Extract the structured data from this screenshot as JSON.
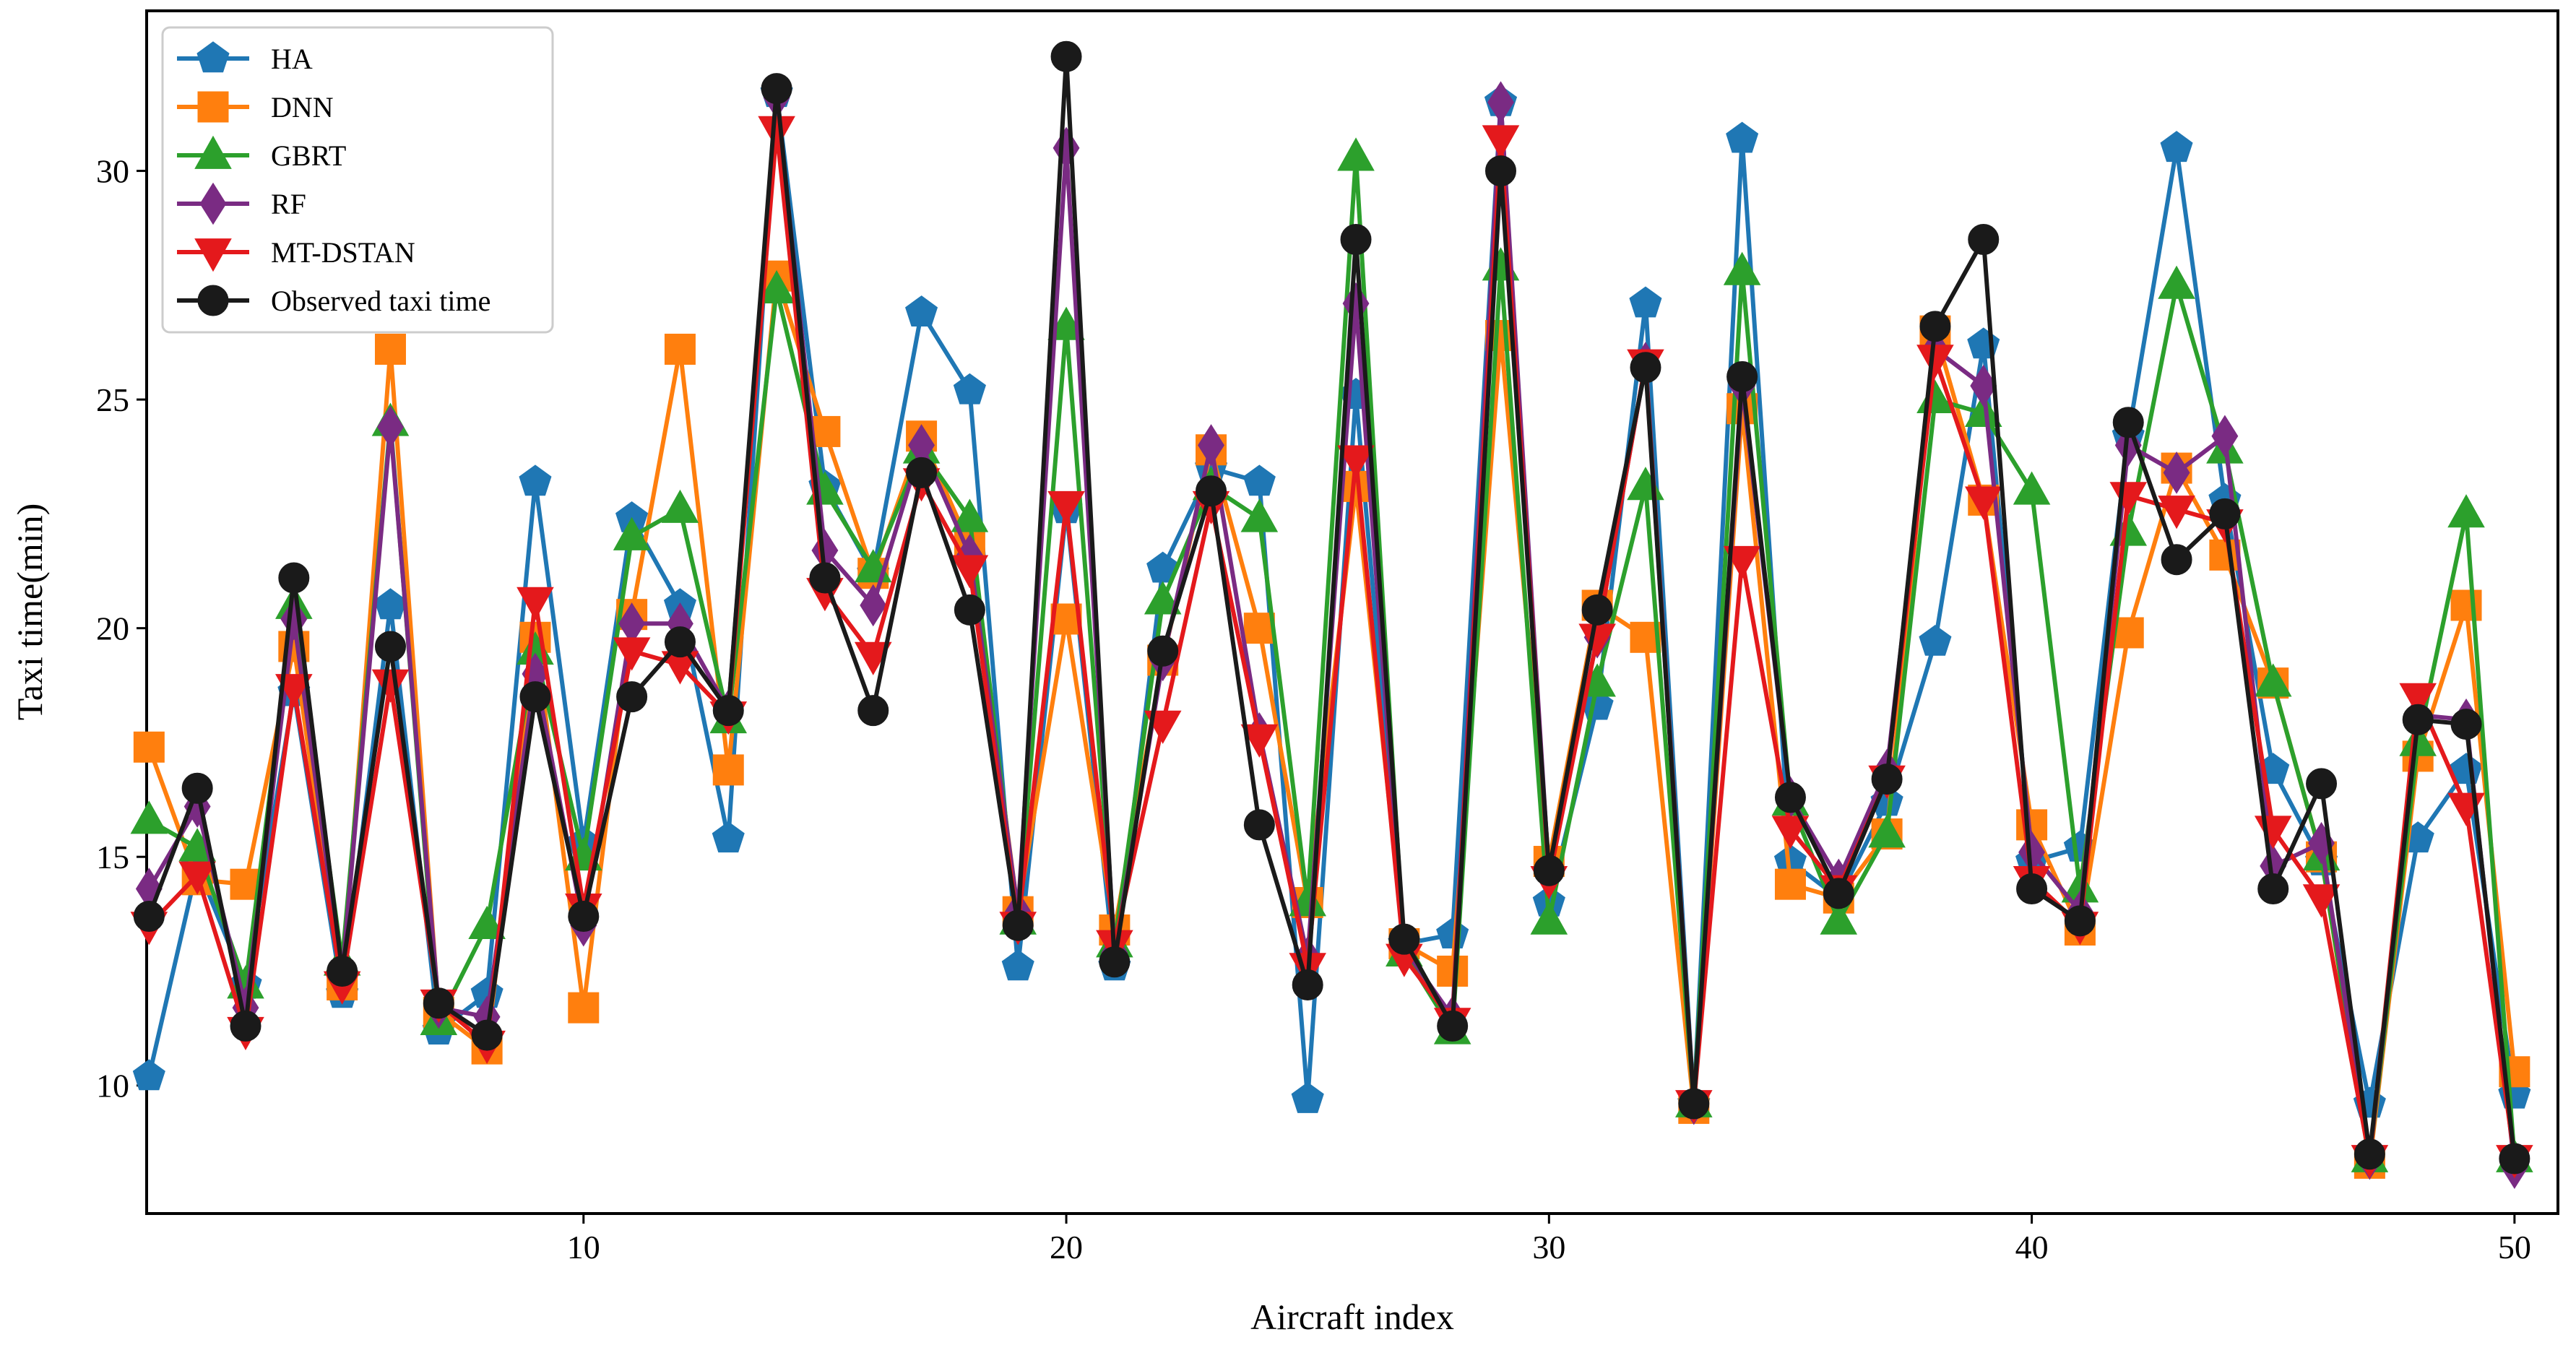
{
  "chart_data": {
    "type": "line",
    "title": "",
    "xlabel": "Aircraft index",
    "ylabel": "Taxi time(min)",
    "xlim": [
      0.95,
      50.9
    ],
    "ylim": [
      7.2,
      33.5
    ],
    "xticks": [
      10,
      20,
      30,
      40,
      50
    ],
    "yticks": [
      10,
      15,
      20,
      25,
      30
    ],
    "legend_position": "top-left",
    "x": [
      1,
      2,
      3,
      4,
      5,
      6,
      7,
      8,
      9,
      10,
      11,
      12,
      13,
      14,
      15,
      16,
      17,
      18,
      19,
      20,
      21,
      22,
      23,
      24,
      25,
      26,
      27,
      28,
      29,
      30,
      31,
      32,
      33,
      34,
      35,
      36,
      37,
      38,
      39,
      40,
      41,
      42,
      43,
      44,
      45,
      46,
      47,
      48,
      49,
      50
    ],
    "series": [
      {
        "name": "HA",
        "color": "#1f77b4",
        "marker": "pentagon",
        "values": [
          10.2,
          14.8,
          12.2,
          18.6,
          12.0,
          20.5,
          11.2,
          12.0,
          23.2,
          15.3,
          22.4,
          20.5,
          15.4,
          31.7,
          23.1,
          21.2,
          26.9,
          25.2,
          12.6,
          22.6,
          12.6,
          21.3,
          23.5,
          23.2,
          9.7,
          25.1,
          13.1,
          13.3,
          31.5,
          14.0,
          18.3,
          27.1,
          9.6,
          30.7,
          14.9,
          14.1,
          16.2,
          19.7,
          26.2,
          14.9,
          15.2,
          24.2,
          30.5,
          22.8,
          16.9,
          14.9,
          9.6,
          15.4,
          16.9,
          9.8
        ]
      },
      {
        "name": "DNN",
        "color": "#ff7f0e",
        "marker": "square",
        "values": [
          17.4,
          14.5,
          14.4,
          19.6,
          12.2,
          26.1,
          11.6,
          10.8,
          19.8,
          11.7,
          20.3,
          26.1,
          16.9,
          27.7,
          24.3,
          21.2,
          24.2,
          21.8,
          13.8,
          20.2,
          13.4,
          19.3,
          23.9,
          20.0,
          14.0,
          23.1,
          13.1,
          12.5,
          26.4,
          14.9,
          20.5,
          19.8,
          9.5,
          24.8,
          14.4,
          14.1,
          15.5,
          26.5,
          22.8,
          15.7,
          13.4,
          19.9,
          23.5,
          21.6,
          18.8,
          15.0,
          8.3,
          17.2,
          20.5,
          10.3
        ]
      },
      {
        "name": "GBRT",
        "color": "#2ca02c",
        "marker": "triangle-up",
        "values": [
          15.8,
          15.2,
          12.2,
          20.5,
          12.7,
          24.5,
          11.4,
          13.5,
          19.5,
          15.0,
          22.0,
          22.6,
          18.0,
          27.4,
          23.0,
          21.3,
          23.9,
          22.4,
          13.6,
          26.6,
          13.1,
          20.6,
          23.1,
          22.4,
          14.0,
          30.3,
          12.9,
          11.2,
          27.9,
          13.6,
          18.8,
          23.1,
          9.6,
          27.8,
          16.2,
          13.6,
          15.5,
          25.0,
          24.7,
          23.0,
          14.3,
          22.1,
          27.5,
          23.9,
          18.8,
          15.0,
          8.4,
          17.5,
          22.5,
          8.4
        ]
      },
      {
        "name": "RF",
        "color": "#7a2b83",
        "marker": "diamond",
        "values": [
          14.3,
          16.1,
          11.7,
          20.2,
          12.4,
          24.4,
          11.7,
          11.5,
          19.0,
          13.5,
          20.1,
          20.1,
          18.2,
          31.6,
          21.7,
          20.5,
          24.0,
          21.6,
          13.8,
          30.5,
          12.9,
          19.3,
          24.0,
          17.7,
          12.8,
          27.1,
          13.0,
          11.5,
          31.5,
          14.6,
          19.8,
          25.8,
          9.6,
          25.3,
          16.3,
          14.5,
          16.9,
          26.1,
          25.3,
          15.1,
          13.8,
          24.0,
          23.4,
          24.2,
          14.8,
          15.3,
          8.4,
          18.1,
          18.0,
          8.2
        ]
      },
      {
        "name": "MT-DSTAN",
        "color": "#e4191c",
        "marker": "triangle-down",
        "values": [
          13.5,
          14.6,
          11.2,
          18.7,
          12.2,
          18.8,
          11.8,
          10.9,
          20.6,
          13.9,
          19.5,
          19.2,
          18.1,
          30.9,
          20.8,
          19.4,
          23.2,
          21.3,
          13.5,
          22.7,
          13.1,
          17.9,
          22.7,
          17.6,
          12.6,
          23.7,
          12.8,
          11.4,
          30.7,
          14.5,
          19.8,
          25.8,
          9.6,
          21.5,
          15.6,
          14.3,
          16.7,
          25.9,
          22.8,
          14.5,
          13.5,
          22.9,
          22.6,
          22.3,
          15.6,
          14.1,
          8.4,
          18.5,
          16.1,
          8.4
        ]
      },
      {
        "name": "Observed taxi time",
        "color": "#1a1a1a",
        "marker": "circle",
        "values": [
          13.7,
          16.5,
          11.3,
          21.1,
          12.5,
          19.6,
          11.8,
          11.1,
          18.5,
          13.7,
          18.5,
          19.7,
          18.2,
          31.8,
          21.1,
          18.2,
          23.4,
          20.4,
          13.5,
          32.5,
          12.7,
          19.5,
          23.0,
          15.7,
          12.2,
          28.5,
          13.2,
          11.3,
          30.0,
          14.7,
          20.4,
          25.7,
          9.6,
          25.5,
          16.3,
          14.2,
          16.7,
          26.6,
          28.5,
          14.3,
          13.6,
          24.5,
          21.5,
          22.5,
          14.3,
          16.6,
          8.5,
          18.0,
          17.9,
          8.4
        ]
      }
    ]
  }
}
